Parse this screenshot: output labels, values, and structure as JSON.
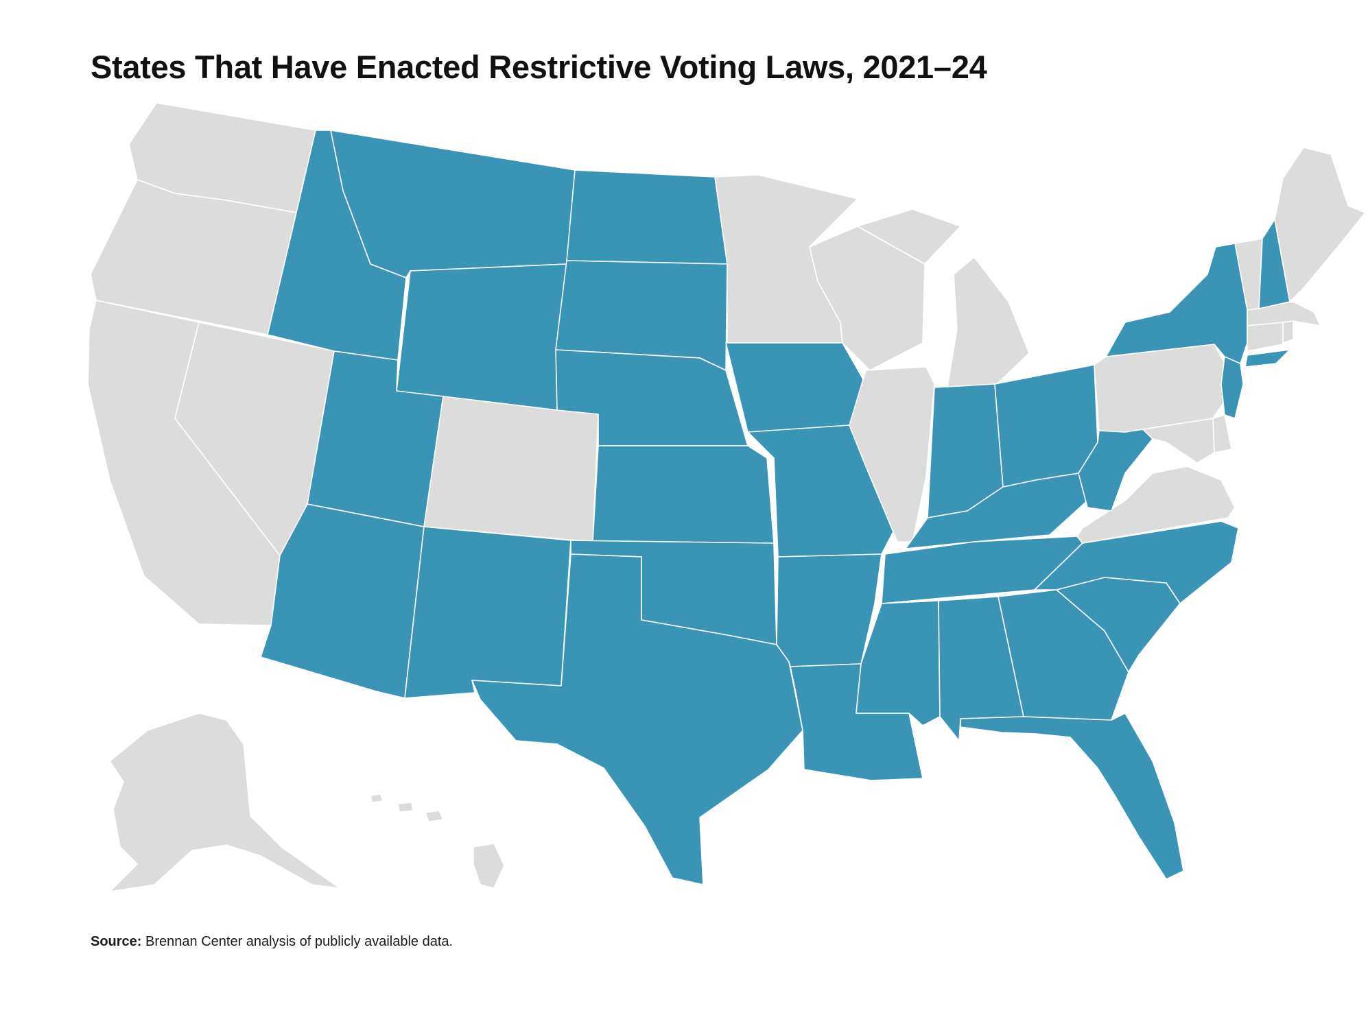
{
  "title": "States That Have Enacted Restrictive Voting Laws, 2021–24",
  "source": {
    "label": "Source:",
    "text": " Brennan Center analysis of publicly available data."
  },
  "colors": {
    "restrictive": "#3a94b6",
    "other": "#dcdcdc",
    "border": "#ffffff"
  },
  "states": [
    {
      "code": "WA",
      "status": "other"
    },
    {
      "code": "OR",
      "status": "other"
    },
    {
      "code": "CA",
      "status": "other"
    },
    {
      "code": "NV",
      "status": "other"
    },
    {
      "code": "ID",
      "status": "restrictive"
    },
    {
      "code": "MT",
      "status": "restrictive"
    },
    {
      "code": "WY",
      "status": "restrictive"
    },
    {
      "code": "UT",
      "status": "restrictive"
    },
    {
      "code": "CO",
      "status": "other"
    },
    {
      "code": "AZ",
      "status": "restrictive"
    },
    {
      "code": "NM",
      "status": "restrictive"
    },
    {
      "code": "ND",
      "status": "restrictive"
    },
    {
      "code": "SD",
      "status": "restrictive"
    },
    {
      "code": "NE",
      "status": "restrictive"
    },
    {
      "code": "KS",
      "status": "restrictive"
    },
    {
      "code": "OK",
      "status": "restrictive"
    },
    {
      "code": "TX",
      "status": "restrictive"
    },
    {
      "code": "MN",
      "status": "other"
    },
    {
      "code": "IA",
      "status": "restrictive"
    },
    {
      "code": "MO",
      "status": "restrictive"
    },
    {
      "code": "AR",
      "status": "restrictive"
    },
    {
      "code": "LA",
      "status": "restrictive"
    },
    {
      "code": "WI",
      "status": "other"
    },
    {
      "code": "IL",
      "status": "other"
    },
    {
      "code": "MI",
      "status": "other"
    },
    {
      "code": "IN",
      "status": "restrictive"
    },
    {
      "code": "OH",
      "status": "restrictive"
    },
    {
      "code": "KY",
      "status": "restrictive"
    },
    {
      "code": "TN",
      "status": "restrictive"
    },
    {
      "code": "MS",
      "status": "restrictive"
    },
    {
      "code": "AL",
      "status": "restrictive"
    },
    {
      "code": "GA",
      "status": "restrictive"
    },
    {
      "code": "FL",
      "status": "restrictive"
    },
    {
      "code": "SC",
      "status": "restrictive"
    },
    {
      "code": "NC",
      "status": "restrictive"
    },
    {
      "code": "VA",
      "status": "other"
    },
    {
      "code": "WV",
      "status": "restrictive"
    },
    {
      "code": "MD",
      "status": "other"
    },
    {
      "code": "DE",
      "status": "other"
    },
    {
      "code": "PA",
      "status": "other"
    },
    {
      "code": "NJ",
      "status": "restrictive"
    },
    {
      "code": "NY",
      "status": "restrictive"
    },
    {
      "code": "CT",
      "status": "other"
    },
    {
      "code": "RI",
      "status": "other"
    },
    {
      "code": "MA",
      "status": "other"
    },
    {
      "code": "VT",
      "status": "other"
    },
    {
      "code": "NH",
      "status": "restrictive"
    },
    {
      "code": "ME",
      "status": "other"
    },
    {
      "code": "AK",
      "status": "other"
    },
    {
      "code": "HI",
      "status": "other"
    }
  ]
}
